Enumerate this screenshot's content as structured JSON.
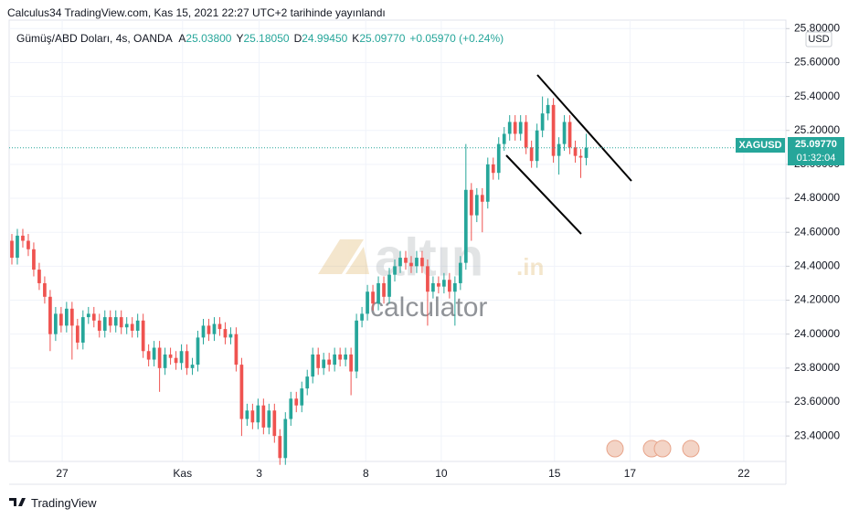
{
  "header": "Calculus34 TradingView.com, Kas 15, 2021 22:27 UTC+2 tarihinde yayınlandı",
  "legend": {
    "symbol": "Gümüş/ABD Doları, 4s, OANDA",
    "fields": [
      {
        "key": "A",
        "value": "25.03800"
      },
      {
        "key": "Y",
        "value": "25.18050"
      },
      {
        "key": "D",
        "value": "24.99450"
      },
      {
        "key": "K",
        "value": "25.09770"
      }
    ],
    "change": "+0.05970 (+0.24%)"
  },
  "currency": "USD",
  "price_tag": {
    "symbol": "XAGUSD",
    "price": "25.09770",
    "countdown": "01:32:04"
  },
  "watermark": {
    "brand": "altın",
    "domain": ".in",
    "subtitle": "calculator"
  },
  "footer": "TradingView",
  "chart_data": {
    "type": "candlestick",
    "up_color": "#26a69a",
    "down_color": "#ef5350",
    "last_price": 25.0977,
    "last_price_color": "#26a69a",
    "xlim": [
      -0.5,
      141.5
    ],
    "xticks": [
      {
        "value": 9.2,
        "label": "27"
      },
      {
        "value": 31.2,
        "label": "Kas"
      },
      {
        "value": 45.2,
        "label": "3"
      },
      {
        "value": 64.7,
        "label": "8"
      },
      {
        "value": 78.5,
        "label": "10"
      },
      {
        "value": 99.2,
        "label": "15"
      },
      {
        "value": 113,
        "label": "17"
      },
      {
        "value": 133.8,
        "label": "22"
      }
    ],
    "ylim": [
      23.25,
      25.85
    ],
    "yticks": [
      {
        "value": 23.4,
        "label": "23.40000"
      },
      {
        "value": 23.6,
        "label": "23.60000"
      },
      {
        "value": 23.8,
        "label": "23.80000"
      },
      {
        "value": 24.0,
        "label": "24.00000"
      },
      {
        "value": 24.2,
        "label": "24.20000"
      },
      {
        "value": 24.4,
        "label": "24.40000"
      },
      {
        "value": 24.6,
        "label": "24.60000"
      },
      {
        "value": 24.8,
        "label": "24.80000"
      },
      {
        "value": 25.0,
        "label": "25.00000"
      },
      {
        "value": 25.2,
        "label": "25.20000"
      },
      {
        "value": 25.4,
        "label": "25.40000"
      },
      {
        "value": 25.6,
        "label": "25.60000"
      },
      {
        "value": 25.8,
        "label": "25.80000"
      }
    ],
    "open": [
      24.55,
      24.45,
      24.58,
      24.55,
      24.5,
      24.38,
      24.3,
      24.22,
      24.0,
      24.12,
      24.05,
      24.15,
      24.05,
      23.95,
      24.1,
      24.12,
      24.08,
      24.02,
      24.1,
      24.05,
      24.1,
      24.04,
      24.06,
      24.02,
      24.08,
      23.9,
      23.85,
      23.92,
      23.8,
      23.88,
      23.86,
      23.83,
      23.9,
      23.8,
      23.82,
      23.98,
      24.05,
      24.0,
      24.06,
      24.03,
      23.98,
      24.0,
      23.82,
      23.5,
      23.55,
      23.48,
      23.58,
      23.45,
      23.55,
      23.4,
      23.27,
      23.5,
      23.62,
      23.58,
      23.68,
      23.75,
      23.88,
      23.8,
      23.85,
      23.82,
      23.88,
      23.85,
      23.88,
      23.78,
      24.08,
      24.12,
      24.25,
      24.18,
      24.3,
      24.22,
      24.35,
      24.4,
      24.45,
      24.42,
      24.4,
      24.45,
      24.4,
      24.25,
      24.3,
      24.28,
      24.32,
      24.25,
      24.3,
      24.42,
      24.85,
      24.7,
      24.82,
      24.78,
      25.0,
      24.95,
      25.12,
      25.18,
      25.25,
      25.18,
      25.25,
      25.1,
      25.02,
      25.2,
      25.3,
      25.35,
      25.05,
      25.12,
      25.25,
      25.1,
      25.05,
      25.038
    ],
    "high": [
      24.59,
      24.62,
      24.62,
      24.59,
      24.54,
      24.42,
      24.34,
      24.26,
      24.16,
      24.16,
      24.19,
      24.19,
      24.09,
      24.14,
      24.16,
      24.16,
      24.12,
      24.14,
      24.14,
      24.14,
      24.14,
      24.1,
      24.1,
      24.12,
      24.12,
      23.94,
      23.96,
      23.96,
      23.92,
      23.92,
      23.9,
      23.94,
      23.94,
      23.86,
      24.02,
      24.09,
      24.09,
      24.1,
      24.1,
      24.07,
      24.04,
      24.04,
      23.86,
      23.59,
      23.59,
      23.62,
      23.62,
      23.59,
      23.59,
      23.44,
      23.54,
      23.66,
      23.66,
      23.72,
      23.79,
      23.92,
      23.92,
      23.89,
      23.89,
      23.92,
      23.92,
      23.92,
      23.92,
      24.12,
      24.16,
      24.29,
      24.29,
      24.34,
      24.34,
      24.39,
      24.44,
      24.49,
      24.49,
      24.46,
      24.49,
      24.49,
      24.44,
      24.34,
      24.34,
      24.36,
      24.36,
      24.34,
      24.46,
      25.12,
      24.89,
      24.86,
      24.86,
      25.04,
      25.04,
      25.16,
      25.22,
      25.29,
      25.29,
      25.29,
      25.29,
      25.14,
      25.24,
      25.4,
      25.39,
      25.39,
      25.16,
      25.29,
      25.29,
      25.14,
      25.09,
      25.1805
    ],
    "low": [
      24.41,
      24.41,
      24.51,
      24.46,
      24.34,
      24.26,
      24.18,
      23.9,
      23.96,
      24.01,
      24.01,
      23.85,
      23.91,
      23.91,
      24.06,
      24.04,
      23.98,
      23.98,
      24.01,
      24.01,
      24.0,
      24.0,
      23.98,
      23.98,
      23.86,
      23.81,
      23.81,
      23.66,
      23.76,
      23.82,
      23.79,
      23.79,
      23.76,
      23.76,
      23.78,
      23.94,
      23.96,
      23.96,
      23.99,
      23.94,
      23.94,
      23.78,
      23.4,
      23.46,
      23.44,
      23.44,
      23.41,
      23.41,
      23.36,
      23.23,
      23.23,
      23.46,
      23.54,
      23.54,
      23.64,
      23.71,
      23.76,
      23.76,
      23.78,
      23.78,
      23.81,
      23.81,
      23.64,
      23.74,
      24.04,
      24.08,
      24.14,
      24.14,
      24.18,
      24.18,
      24.31,
      24.36,
      24.38,
      24.36,
      24.36,
      24.36,
      24.05,
      24.21,
      24.24,
      24.24,
      24.21,
      24.05,
      24.26,
      24.38,
      24.55,
      24.66,
      24.6,
      24.74,
      24.91,
      24.91,
      25.08,
      25.14,
      25.14,
      25.14,
      25.06,
      24.98,
      24.98,
      25.16,
      25.26,
      25.01,
      24.94,
      25.08,
      25.06,
      25.01,
      24.92,
      24.9945
    ],
    "close": [
      24.45,
      24.58,
      24.55,
      24.5,
      24.38,
      24.3,
      24.22,
      24.0,
      24.12,
      24.05,
      24.15,
      24.05,
      23.95,
      24.1,
      24.12,
      24.08,
      24.02,
      24.1,
      24.05,
      24.1,
      24.04,
      24.06,
      24.02,
      24.08,
      23.9,
      23.85,
      23.92,
      23.8,
      23.88,
      23.86,
      23.83,
      23.9,
      23.8,
      23.82,
      23.98,
      24.05,
      24.0,
      24.06,
      24.03,
      23.98,
      24.0,
      23.82,
      23.5,
      23.55,
      23.48,
      23.58,
      23.45,
      23.55,
      23.4,
      23.27,
      23.5,
      23.62,
      23.58,
      23.68,
      23.75,
      23.88,
      23.8,
      23.85,
      23.82,
      23.88,
      23.85,
      23.88,
      23.78,
      24.08,
      24.12,
      24.25,
      24.18,
      24.3,
      24.22,
      24.35,
      24.4,
      24.45,
      24.42,
      24.4,
      24.45,
      24.4,
      24.25,
      24.3,
      24.28,
      24.32,
      24.25,
      24.3,
      24.42,
      24.85,
      24.7,
      24.82,
      24.78,
      25.0,
      24.95,
      25.12,
      25.18,
      25.25,
      25.18,
      25.25,
      25.1,
      25.02,
      25.2,
      25.3,
      25.35,
      25.05,
      25.12,
      25.25,
      25.1,
      25.05,
      25.04,
      25.0977
    ]
  }
}
